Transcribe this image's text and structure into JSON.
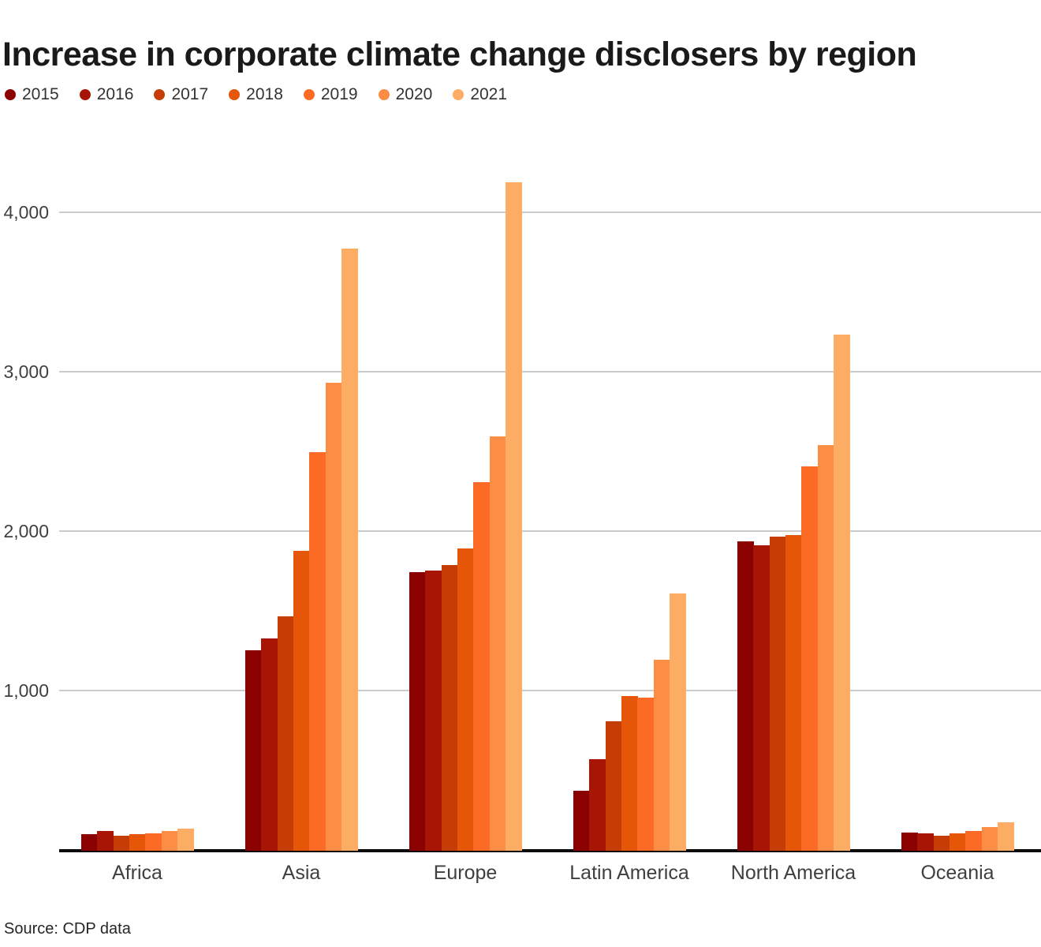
{
  "title": "Increase in corporate climate change disclosers by region",
  "source": "Source: CDP data",
  "chart_data": {
    "type": "bar",
    "title": "Increase in corporate climate change disclosers by region",
    "categories": [
      "Africa",
      "Asia",
      "Europe",
      "Latin America",
      "North America",
      "Oceania"
    ],
    "series": [
      {
        "name": "2015",
        "color": "#8B0000",
        "values": [
          95,
          1250,
          1740,
          365,
          1930,
          105
        ]
      },
      {
        "name": "2016",
        "color": "#A81505",
        "values": [
          115,
          1320,
          1750,
          565,
          1905,
          100
        ]
      },
      {
        "name": "2017",
        "color": "#C53C04",
        "values": [
          85,
          1460,
          1780,
          800,
          1960,
          85
        ]
      },
      {
        "name": "2018",
        "color": "#E55609",
        "values": [
          95,
          1870,
          1885,
          960,
          1970,
          100
        ]
      },
      {
        "name": "2019",
        "color": "#FC6B26",
        "values": [
          100,
          2490,
          2300,
          950,
          2400,
          115
        ]
      },
      {
        "name": "2020",
        "color": "#FC8D44",
        "values": [
          115,
          2925,
          2590,
          1190,
          2535,
          140
        ]
      },
      {
        "name": "2021",
        "color": "#FDAC64",
        "values": [
          130,
          3765,
          4185,
          1605,
          3230,
          170
        ]
      }
    ],
    "xlabel": "",
    "ylabel": "",
    "yticks": [
      1000,
      2000,
      3000,
      4000
    ],
    "ytick_labels": [
      "1,000",
      "2,000",
      "3,000",
      "4,000"
    ],
    "ylim": [
      0,
      4300
    ],
    "grid": true,
    "legend_position": "top",
    "source": "Source: CDP data"
  }
}
